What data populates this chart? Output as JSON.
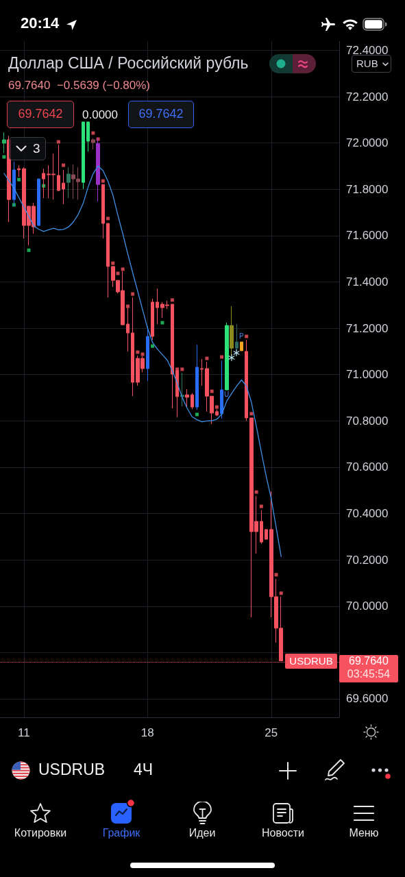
{
  "chart_data": {
    "type": "candlestick",
    "title": "Доллар США / Российский рубль",
    "subtitle": "69.7640  −0.5639 (−0.80%)",
    "categories": [
      null,
      null,
      null,
      null,
      "11",
      null,
      null,
      null,
      null,
      null,
      null,
      null,
      null,
      null,
      null,
      null,
      null,
      null,
      null,
      null,
      null,
      null,
      null,
      null,
      null,
      null,
      null,
      null,
      null,
      "18",
      null,
      null,
      null,
      null,
      null,
      null,
      null,
      null,
      null,
      null,
      null,
      null,
      null,
      null,
      null,
      null,
      null,
      null,
      null,
      null,
      null,
      null,
      null,
      null,
      "25",
      null,
      null
    ],
    "ohlc": [
      [
        72.014,
        72.046,
        71.957,
        71.999
      ],
      [
        72.014,
        72.031,
        71.659,
        71.756
      ],
      [
        71.756,
        71.919,
        71.727,
        71.884
      ],
      [
        71.889,
        71.904,
        71.854,
        71.884
      ],
      [
        71.889,
        71.895,
        71.588,
        71.644
      ],
      [
        71.727,
        71.727,
        71.558,
        71.644
      ],
      [
        71.727,
        71.742,
        71.608,
        71.638
      ],
      [
        71.644,
        71.845,
        71.644,
        71.845
      ],
      [
        71.869,
        71.889,
        71.762,
        71.845
      ],
      [
        71.866,
        71.904,
        71.762,
        71.863
      ],
      [
        71.866,
        71.954,
        71.756,
        71.863
      ],
      [
        71.86,
        71.993,
        71.792,
        71.795
      ],
      [
        71.827,
        71.884,
        71.736,
        71.801
      ],
      [
        71.83,
        71.895,
        71.762,
        71.866
      ],
      [
        71.863,
        71.907,
        71.759,
        71.845
      ],
      [
        71.845,
        71.895,
        71.756,
        71.833
      ],
      [
        71.83,
        72.091,
        71.801,
        72.091
      ],
      [
        72.091,
        72.091,
        71.963,
        72.008
      ],
      [
        72.014,
        72.02,
        71.972,
        72.002
      ],
      [
        71.998,
        72.023,
        71.747,
        71.821
      ],
      [
        71.821,
        71.821,
        71.588,
        71.653
      ],
      [
        71.653,
        71.653,
        71.333,
        71.467
      ],
      [
        71.467,
        71.467,
        71.378,
        71.407
      ],
      [
        71.407,
        71.407,
        71.351,
        71.357
      ],
      [
        71.363,
        71.446,
        71.215,
        71.215
      ],
      [
        71.218,
        71.29,
        71.1,
        71.18
      ],
      [
        71.18,
        71.333,
        70.907,
        70.967
      ],
      [
        71.07,
        71.082,
        70.952,
        70.967
      ],
      [
        71.07,
        71.08,
        71.01,
        71.026
      ],
      [
        71.026,
        71.209,
        70.973,
        71.165
      ],
      [
        71.313,
        71.328,
        71.15,
        71.165
      ],
      [
        71.313,
        71.372,
        71.218,
        71.289
      ],
      [
        71.304,
        71.313,
        71.245,
        71.289
      ],
      [
        71.301,
        71.319,
        71.283,
        71.298
      ],
      [
        71.304,
        71.304,
        70.854,
        71.002
      ],
      [
        71.017,
        71.017,
        70.816,
        70.905
      ],
      [
        70.905,
        71.008,
        70.863,
        70.911
      ],
      [
        70.913,
        70.937,
        70.86,
        70.902
      ],
      [
        70.913,
        70.92,
        70.85,
        70.86
      ],
      [
        70.86,
        71.129,
        70.848,
        71.032
      ],
      [
        71.026,
        71.067,
        70.952,
        71.023
      ],
      [
        71.026,
        71.055,
        70.84,
        70.907
      ],
      [
        70.907,
        70.907,
        70.786,
        70.834
      ],
      [
        70.84,
        70.85,
        70.82,
        70.825
      ],
      [
        70.831,
        71.061,
        70.81,
        70.934
      ],
      [
        70.934,
        71.224,
        70.934,
        71.212
      ],
      [
        71.212,
        71.295,
        71.082,
        71.114
      ],
      [
        71.114,
        71.218,
        71.103,
        71.141
      ],
      [
        71.141,
        71.141,
        71.103,
        71.103
      ],
      [
        71.1,
        71.15,
        70.8,
        70.813
      ],
      [
        70.813,
        70.813,
        69.952,
        70.322
      ],
      [
        70.366,
        70.476,
        70.227,
        70.322
      ],
      [
        70.366,
        70.414,
        70.27,
        70.277
      ],
      [
        70.331,
        70.331,
        70.289,
        70.289
      ],
      [
        70.331,
        70.496,
        69.952,
        70.041
      ],
      [
        70.041,
        70.118,
        69.843,
        69.905
      ],
      [
        69.905,
        70.041,
        69.764,
        69.764
      ]
    ],
    "colors": [
      "#26b765",
      "#f7525f",
      "#2a6df4",
      "#f7525f",
      "#f7525f",
      "#f7525f",
      "#f7525f",
      "#2a6df4",
      "#f7525f",
      "#f7525f",
      "#f7525f",
      "#f7525f",
      "#f7525f",
      "#2d7a5f",
      "#8b4a56",
      "#8b4a56",
      "#2ee27a",
      "#2ee27a",
      "#8b4a56",
      "#9c31c9",
      "#f7525f",
      "#f7525f",
      "#f7525f",
      "#f7525f",
      "#f7525f",
      "#f7525f",
      "#f7525f",
      "#f7525f",
      "#f7525f",
      "#2a6df4",
      "#f7525f",
      "#f7525f",
      "#f7525f",
      "#f7525f",
      "#f7525f",
      "#f7525f",
      "#2d7a5f",
      "#f7525f",
      "#f7525f",
      "#2a6df4",
      "#f7525f",
      "#f7525f",
      "#f7525f",
      "#f7525f",
      "#2a6df4",
      "#2ee27a",
      "#8c8a1c",
      "#2d6a60",
      "#f5a623",
      "#f7525f",
      "#f7525f",
      "#f7525f",
      "#f7525f",
      "#f7525f",
      "#f7525f",
      "#f7525f",
      "#f7525f"
    ],
    "series": [
      {
        "type": "line",
        "color": "#3d8fe6",
        "values": [
          71.869,
          71.837,
          71.805,
          71.764,
          71.724,
          71.683,
          71.642,
          71.628,
          71.618,
          71.625,
          71.632,
          71.625,
          71.627,
          71.637,
          71.659,
          71.692,
          71.74,
          71.811,
          71.867,
          71.901,
          71.881,
          71.835,
          71.775,
          71.688,
          71.608,
          71.522,
          71.44,
          71.361,
          71.28,
          71.201,
          71.139,
          71.11,
          71.086,
          71.062,
          71.016,
          70.964,
          70.902,
          70.855,
          70.818,
          70.805,
          70.796,
          70.8,
          70.801,
          70.807,
          70.829,
          70.885,
          70.919,
          70.95,
          70.977,
          70.95,
          70.88,
          70.776,
          70.665,
          70.559,
          70.464,
          70.34,
          70.215
        ]
      },
      {
        "type": "scatter",
        "marker": "square",
        "color": "#f7525f",
        "values": [
          null,
          null,
          null,
          null,
          null,
          null,
          null,
          null,
          null,
          null,
          null,
          72.005,
          71.904,
          null,
          null,
          null,
          null,
          null,
          72.043,
          72.017,
          71.836,
          71.674,
          71.481,
          71.437,
          71.455,
          71.295,
          71.348,
          71.097,
          71.088,
          null,
          null,
          null,
          null,
          null,
          71.322,
          71.023,
          71.023,
          null,
          null,
          null,
          null,
          71.07,
          70.928,
          70.86,
          71.076,
          null,
          null,
          null,
          null,
          71.165,
          70.831,
          70.493,
          70.431,
          null,
          null,
          70.136,
          70.056
        ]
      },
      {
        "type": "scatter",
        "marker": "square",
        "color": "#22d36b",
        "values": [
          71.94,
          null,
          71.733,
          71.842,
          null,
          71.537,
          null,
          null,
          71.815,
          null,
          null,
          null,
          null,
          null,
          null,
          null,
          null,
          null,
          null,
          null,
          null,
          null,
          null,
          null,
          null,
          null,
          null,
          null,
          null,
          null,
          71.123,
          null,
          71.224,
          null,
          null,
          null,
          null,
          null,
          null,
          70.828,
          null,
          null,
          null,
          null,
          null,
          null,
          null,
          null,
          null,
          null,
          null,
          null,
          null,
          null,
          null,
          null,
          null
        ]
      }
    ],
    "ylim": [
      69.52,
      72.44
    ],
    "yticks": [
      {
        "value": 69.6,
        "label": "69.6000"
      },
      {
        "value": 69.8,
        "label": null
      },
      {
        "value": 70.0,
        "label": "70.0000"
      },
      {
        "value": 70.2,
        "label": "70.2000"
      },
      {
        "value": 70.4,
        "label": "70.4000"
      },
      {
        "value": 70.6,
        "label": "70.6000"
      },
      {
        "value": 70.8,
        "label": "70.8000"
      },
      {
        "value": 71.0,
        "label": "71.0000"
      },
      {
        "value": 71.2,
        "label": "71.2000"
      },
      {
        "value": 71.4,
        "label": "71.4000"
      },
      {
        "value": 71.6,
        "label": "71.6000"
      },
      {
        "value": 71.8,
        "label": "71.8000"
      },
      {
        "value": 72.0,
        "label": "72.0000"
      },
      {
        "value": 72.2,
        "label": "72.2000"
      },
      {
        "value": 72.4,
        "label": "72.4000"
      }
    ],
    "grid": true,
    "ref_lines": [
      {
        "axis": "y",
        "value": 69.764,
        "label": "USDRUB",
        "color": "#f7525f",
        "line_style": "dotted"
      }
    ],
    "annotations": [
      "69.7642",
      "0.0000",
      "69.7642",
      "3",
      "RUB",
      "69.7640",
      "03:45:54",
      "U",
      "P",
      "USDRUB",
      "4Ч",
      "Котировки",
      "График",
      "Идеи",
      "Новости",
      "Меню",
      "20:14"
    ]
  }
}
